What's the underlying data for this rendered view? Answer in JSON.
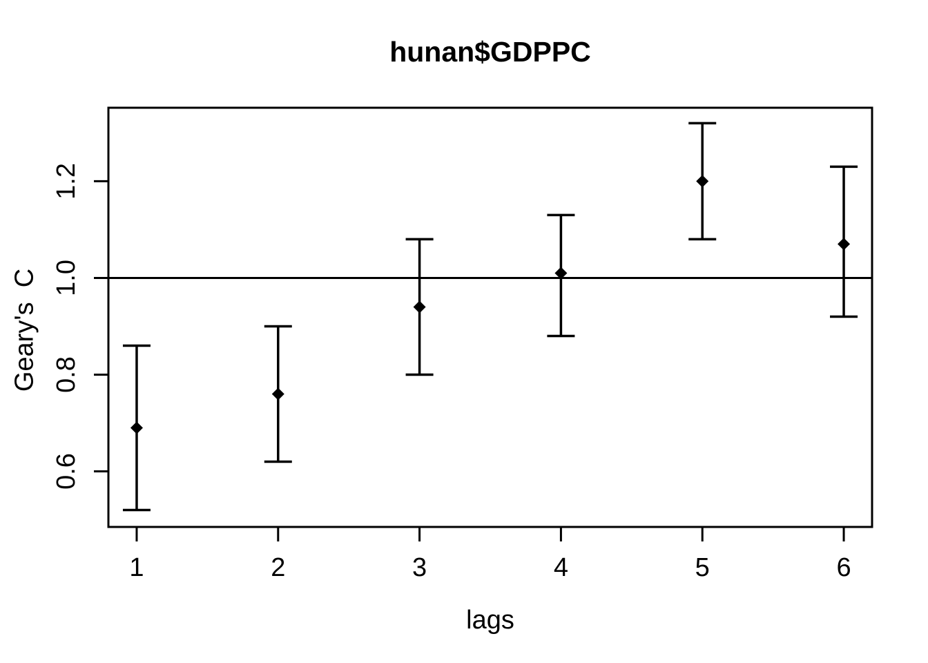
{
  "window": {
    "background_color": "#ffffff",
    "foreground_color": "#000000"
  },
  "chart_data": {
    "type": "scatter",
    "subtype": "correlogram-errorbars",
    "title": "hunan$GDPPC",
    "xlabel": "lags",
    "ylabel": "Geary's  C",
    "x": [
      1,
      2,
      3,
      4,
      5,
      6
    ],
    "series": [
      {
        "name": "Geary's C estimate",
        "values": [
          0.69,
          0.76,
          0.94,
          1.01,
          1.2,
          1.07
        ]
      },
      {
        "name": "lower bound",
        "values": [
          0.52,
          0.62,
          0.8,
          0.88,
          1.08,
          0.92
        ]
      },
      {
        "name": "upper bound",
        "values": [
          0.86,
          0.9,
          1.08,
          1.13,
          1.32,
          1.23
        ]
      }
    ],
    "reference_line_y": 1.0,
    "xlim": [
      0.8,
      6.2
    ],
    "ylim": [
      0.485,
      1.352
    ],
    "x_ticks": [
      {
        "v": 1,
        "label": "1"
      },
      {
        "v": 2,
        "label": "2"
      },
      {
        "v": 3,
        "label": "3"
      },
      {
        "v": 4,
        "label": "4"
      },
      {
        "v": 5,
        "label": "5"
      },
      {
        "v": 6,
        "label": "6"
      }
    ],
    "y_ticks": [
      {
        "v": 0.6,
        "label": "0.6"
      },
      {
        "v": 0.8,
        "label": "0.8"
      },
      {
        "v": 1.0,
        "label": "1.0"
      },
      {
        "v": 1.2,
        "label": "1.2"
      }
    ],
    "marker": "filled-diamond",
    "grid": false,
    "legend": "none",
    "colors": {
      "foreground": "#000000",
      "background": "#ffffff"
    }
  }
}
